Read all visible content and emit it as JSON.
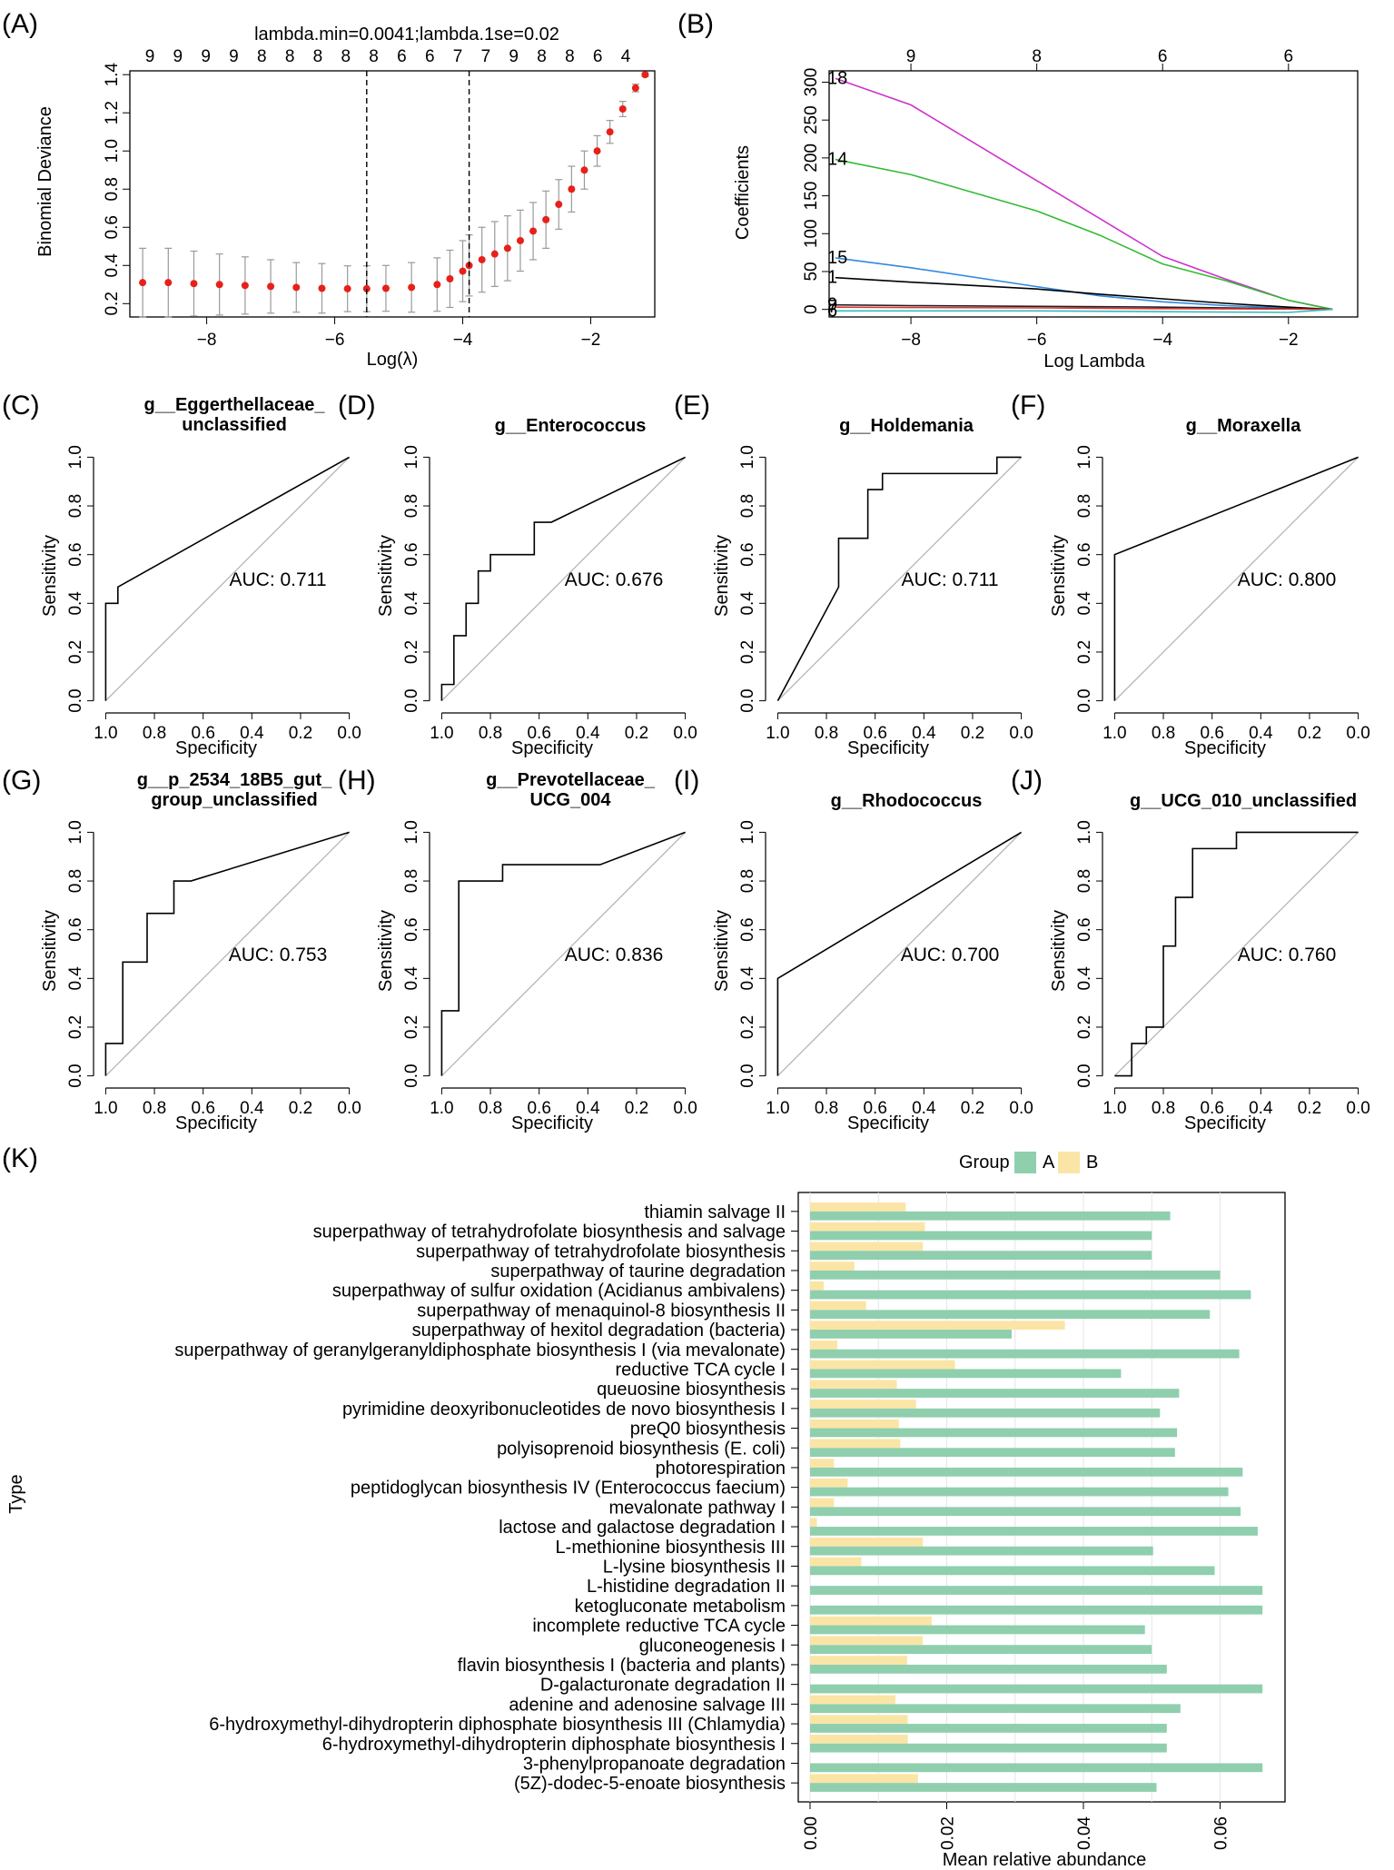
{
  "panels": {
    "A": {
      "label": "(A)",
      "title": "lambda.min=0.0041;lambda.1se=0.02",
      "xlabel": "Log(λ)",
      "ylabel": "Binomial Deviance",
      "top_ticks": [
        "9",
        "9",
        "9",
        "9",
        "8",
        "8",
        "8",
        "8",
        "8",
        "6",
        "6",
        "7",
        "7",
        "9",
        "8",
        "8",
        "6",
        "4"
      ],
      "chart_data": {
        "type": "line",
        "xlim": [
          -9.2,
          -1.0
        ],
        "ylim": [
          0.13,
          1.42
        ],
        "xticks": [
          -8,
          -6,
          -4,
          -2
        ],
        "yticks": [
          0.2,
          0.4,
          0.6,
          0.8,
          1.0,
          1.2,
          1.4
        ],
        "lambda_min_log": -5.5,
        "lambda_1se_log": -3.9,
        "cv_curve": {
          "x": [
            -9.0,
            -8.6,
            -8.2,
            -7.8,
            -7.4,
            -7.0,
            -6.6,
            -6.2,
            -5.8,
            -5.5,
            -5.2,
            -4.8,
            -4.4,
            -4.2,
            -4.0,
            -3.9,
            -3.7,
            -3.5,
            -3.3,
            -3.1,
            -2.9,
            -2.7,
            -2.5,
            -2.3,
            -2.1,
            -1.9,
            -1.7,
            -1.5,
            -1.3,
            -1.15
          ],
          "y": [
            0.31,
            0.31,
            0.305,
            0.3,
            0.295,
            0.29,
            0.285,
            0.28,
            0.278,
            0.278,
            0.28,
            0.285,
            0.3,
            0.33,
            0.37,
            0.4,
            0.43,
            0.46,
            0.49,
            0.53,
            0.58,
            0.64,
            0.72,
            0.8,
            0.9,
            1.0,
            1.1,
            1.22,
            1.33,
            1.4
          ],
          "se": [
            0.18,
            0.18,
            0.17,
            0.16,
            0.15,
            0.14,
            0.13,
            0.13,
            0.12,
            0.12,
            0.12,
            0.13,
            0.14,
            0.15,
            0.16,
            0.16,
            0.17,
            0.17,
            0.17,
            0.16,
            0.15,
            0.15,
            0.13,
            0.12,
            0.1,
            0.08,
            0.06,
            0.04,
            0.02,
            0.01
          ]
        }
      }
    },
    "B": {
      "label": "(B)",
      "xlabel": "Log Lambda",
      "ylabel": "Coefficients",
      "top_ticks": [
        "9",
        "8",
        "6",
        "6"
      ],
      "chart_data": {
        "type": "line",
        "xlim": [
          -9.3,
          -0.9
        ],
        "ylim": [
          -10,
          315
        ],
        "xticks": [
          -8,
          -6,
          -4,
          -2
        ],
        "yticks": [
          0,
          50,
          100,
          150,
          200,
          250,
          300
        ],
        "top_tick_positions": [
          -8,
          -6,
          -4,
          -2
        ],
        "series": [
          {
            "name": "18",
            "color": "#cc33cc",
            "x": [
              -9.2,
              -8.0,
              -6.0,
              -5.0,
              -4.0,
              -3.0,
              -2.0,
              -1.3
            ],
            "y": [
              305,
              270,
              170,
              120,
              70,
              40,
              12,
              0
            ]
          },
          {
            "name": "14",
            "color": "#33bb33",
            "x": [
              -9.2,
              -8.0,
              -6.0,
              -5.0,
              -4.0,
              -3.0,
              -2.0,
              -1.3
            ],
            "y": [
              198,
              178,
              130,
              98,
              60,
              38,
              12,
              0
            ]
          },
          {
            "name": "15",
            "color": "#3388dd",
            "x": [
              -9.2,
              -8.0,
              -6.0,
              -5.0,
              -4.0,
              -3.0,
              -2.0,
              -1.3
            ],
            "y": [
              68,
              55,
              30,
              18,
              10,
              5,
              2,
              0
            ]
          },
          {
            "name": "1",
            "color": "#000000",
            "x": [
              -9.2,
              -8.0,
              -6.0,
              -5.0,
              -4.0,
              -3.0,
              -2.0,
              -1.3
            ],
            "y": [
              42,
              36,
              27,
              20,
              14,
              8,
              3,
              0
            ]
          },
          {
            "name": "9",
            "color": "#222222",
            "x": [
              -9.2,
              -8.0,
              -6.0,
              -4.0,
              -2.0,
              -1.3
            ],
            "y": [
              6,
              5,
              4,
              3,
              1,
              0
            ]
          },
          {
            "name": "7",
            "color": "#dd3333",
            "x": [
              -9.2,
              -8.0,
              -6.0,
              -4.0,
              -2.0,
              -1.3
            ],
            "y": [
              3,
              2.5,
              2,
              1,
              0.5,
              0
            ]
          },
          {
            "name": "6",
            "color": "#33bbbb",
            "x": [
              -9.2,
              -8.0,
              -6.0,
              -4.0,
              -2.0,
              -1.3
            ],
            "y": [
              -2,
              -2,
              -2,
              -3,
              -4,
              0
            ]
          }
        ]
      }
    },
    "roc": [
      {
        "id": "C",
        "label": "(C)",
        "title": [
          "g__Eggerthellaceae_",
          "unclassified"
        ],
        "auc": "AUC: 0.711",
        "spec": [
          1.0,
          1.0,
          0.95,
          0.95,
          0.0
        ],
        "sens": [
          0.0,
          0.4,
          0.4,
          0.467,
          1.0
        ]
      },
      {
        "id": "D",
        "label": "(D)",
        "title": [
          "g__Enterococcus"
        ],
        "auc": "AUC: 0.676",
        "spec": [
          1.0,
          1.0,
          0.95,
          0.95,
          0.9,
          0.9,
          0.85,
          0.85,
          0.8,
          0.8,
          0.72,
          0.72,
          0.62,
          0.62,
          0.55,
          0.0
        ],
        "sens": [
          0.0,
          0.067,
          0.067,
          0.267,
          0.267,
          0.4,
          0.4,
          0.533,
          0.533,
          0.6,
          0.6,
          0.6,
          0.6,
          0.733,
          0.733,
          1.0
        ]
      },
      {
        "id": "E",
        "label": "(E)",
        "title": [
          "g__Holdemania"
        ],
        "auc": "AUC: 0.711",
        "spec": [
          1.0,
          0.75,
          0.75,
          0.63,
          0.63,
          0.57,
          0.57,
          0.1,
          0.1,
          0.0
        ],
        "sens": [
          0.0,
          0.467,
          0.667,
          0.667,
          0.867,
          0.867,
          0.933,
          0.933,
          1.0,
          1.0
        ]
      },
      {
        "id": "F",
        "label": "(F)",
        "title": [
          "g__Moraxella"
        ],
        "auc": "AUC: 0.800",
        "spec": [
          1.0,
          1.0,
          0.0
        ],
        "sens": [
          0.0,
          0.6,
          1.0
        ]
      },
      {
        "id": "G",
        "label": "(G)",
        "title": [
          "g__p_2534_18B5_gut_",
          "group_unclassified"
        ],
        "auc": "AUC: 0.753",
        "spec": [
          1.0,
          1.0,
          0.93,
          0.93,
          0.83,
          0.83,
          0.72,
          0.72,
          0.65,
          0.0
        ],
        "sens": [
          0.0,
          0.133,
          0.133,
          0.467,
          0.467,
          0.667,
          0.667,
          0.8,
          0.8,
          1.0
        ]
      },
      {
        "id": "H",
        "label": "(H)",
        "title": [
          "g__Prevotellaceae_",
          "UCG_004"
        ],
        "auc": "AUC: 0.836",
        "spec": [
          1.0,
          1.0,
          0.93,
          0.93,
          0.75,
          0.75,
          0.35,
          0.0
        ],
        "sens": [
          0.0,
          0.267,
          0.267,
          0.8,
          0.8,
          0.867,
          0.867,
          1.0
        ]
      },
      {
        "id": "I",
        "label": "(I)",
        "title": [
          "g__Rhodococcus"
        ],
        "auc": "AUC: 0.700",
        "spec": [
          1.0,
          1.0,
          0.0
        ],
        "sens": [
          0.0,
          0.4,
          1.0
        ]
      },
      {
        "id": "J",
        "label": "(J)",
        "title": [
          "g__UCG_010_unclassified"
        ],
        "auc": "AUC: 0.760",
        "spec": [
          1.0,
          0.93,
          0.93,
          0.87,
          0.87,
          0.8,
          0.8,
          0.75,
          0.75,
          0.68,
          0.68,
          0.5,
          0.5,
          0.0
        ],
        "sens": [
          0.0,
          0.0,
          0.133,
          0.133,
          0.2,
          0.2,
          0.533,
          0.533,
          0.733,
          0.733,
          0.933,
          0.933,
          1.0,
          1.0
        ]
      }
    ],
    "roc_axes": {
      "xlabel": "Specificity",
      "ylabel": "Sensitivity",
      "xticks": [
        "1.0",
        "0.8",
        "0.6",
        "0.4",
        "0.2",
        "0.0"
      ],
      "yticks": [
        "0.0",
        "0.2",
        "0.4",
        "0.6",
        "0.8",
        "1.0"
      ]
    },
    "K": {
      "label": "(K)",
      "legend_title": "Group",
      "xlabel": "Mean relative abundance",
      "ylabel": "Type",
      "chart_data": {
        "type": "bar",
        "xlim": [
          0,
          0.0695
        ],
        "xticks": [
          "0.00",
          "0.02",
          "0.04",
          "0.06"
        ],
        "xtick_values": [
          0,
          0.02,
          0.04,
          0.06
        ],
        "series_names": [
          "A",
          "B"
        ],
        "colors": {
          "A": "#8fcfae",
          "B": "#fbe5a6"
        },
        "categories": [
          "thiamin salvage II",
          "superpathway of tetrahydrofolate biosynthesis and salvage",
          "superpathway of tetrahydrofolate biosynthesis",
          "superpathway of taurine degradation",
          "superpathway of sulfur oxidation (Acidianus ambivalens)",
          "superpathway of menaquinol-8 biosynthesis II",
          "superpathway of hexitol degradation (bacteria)",
          "superpathway of geranylgeranyldiphosphate biosynthesis I (via mevalonate)",
          "reductive TCA cycle I",
          "queuosine biosynthesis",
          "pyrimidine deoxyribonucleotides de novo biosynthesis I",
          "preQ0 biosynthesis",
          "polyisoprenoid biosynthesis (E. coli)",
          "photorespiration",
          "peptidoglycan biosynthesis IV (Enterococcus faecium)",
          "mevalonate pathway I",
          "lactose and galactose degradation I",
          "L-methionine biosynthesis III",
          "L-lysine biosynthesis II",
          "L-histidine degradation II",
          "ketogluconate metabolism",
          "incomplete reductive TCA cycle",
          "gluconeogenesis I",
          "flavin biosynthesis I (bacteria and plants)",
          "D-galacturonate degradation II",
          "adenine and adenosine salvage III",
          "6-hydroxymethyl-dihydropterin diphosphate biosynthesis III (Chlamydia)",
          "6-hydroxymethyl-dihydropterin diphosphate biosynthesis I",
          "3-phenylpropanoate degradation",
          "(5Z)-dodec-5-enoate biosynthesis"
        ],
        "values_A": [
          0.0527,
          0.05,
          0.05,
          0.06,
          0.0645,
          0.0585,
          0.0295,
          0.0628,
          0.0455,
          0.054,
          0.0512,
          0.0537,
          0.0534,
          0.0633,
          0.0612,
          0.063,
          0.0655,
          0.0502,
          0.0592,
          0.0662,
          0.0662,
          0.049,
          0.05,
          0.0522,
          0.0662,
          0.0542,
          0.0522,
          0.0522,
          0.0662,
          0.0507
        ],
        "values_B": [
          0.014,
          0.0168,
          0.0165,
          0.0065,
          0.002,
          0.0082,
          0.0373,
          0.004,
          0.0212,
          0.0127,
          0.0155,
          0.013,
          0.0132,
          0.0035,
          0.0055,
          0.0035,
          0.001,
          0.0165,
          0.0075,
          0.0,
          0.0,
          0.0178,
          0.0165,
          0.0142,
          0.0,
          0.0125,
          0.0143,
          0.0143,
          0.0,
          0.0158
        ]
      }
    }
  }
}
